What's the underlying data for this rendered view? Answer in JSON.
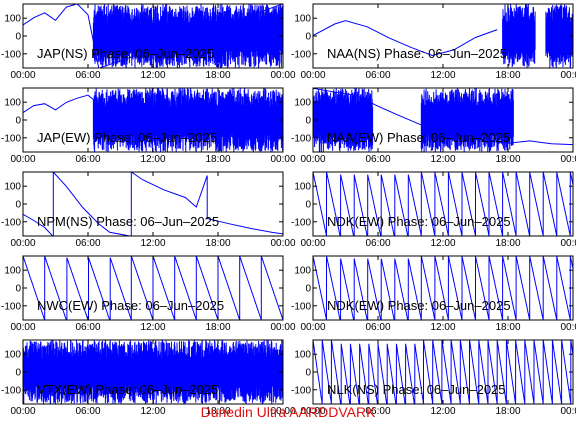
{
  "footer": "Dunedin Ultra AARDDVARK",
  "colors": {
    "trace": "#0000ff",
    "axes": "#000000",
    "background": "#ffffff",
    "footer": "#e01010"
  },
  "chart_data": [
    {
      "type": "line",
      "title": "JAP(NS) Phase: 06–Jun–2025",
      "xlabel": "",
      "ylabel": "",
      "ylim": [
        -180,
        180
      ],
      "yticks": [
        "-100",
        "0",
        "100"
      ],
      "xticks": [
        "00:00",
        "06:00",
        "12:00",
        "18:00",
        "00:00"
      ],
      "xlim_hours": [
        0,
        24
      ],
      "grid": false,
      "series": [
        {
          "x_hours": [
            0,
            1,
            2,
            3,
            4,
            5,
            6,
            7,
            24
          ],
          "values": [
            60,
            100,
            130,
            90,
            160,
            180,
            120,
            -180,
            180
          ]
        }
      ],
      "regions": [
        {
          "description": "noisy / wrapping",
          "from": 6.5,
          "to": 24
        }
      ]
    },
    {
      "type": "line",
      "title": "NAA(NS) Phase: 06–Jun–2025",
      "xlabel": "",
      "ylabel": "",
      "ylim": [
        -180,
        180
      ],
      "yticks": [
        "-100",
        "0",
        "100"
      ],
      "xticks": [
        "00:00",
        "06:00",
        "12:00",
        "18:00",
        "00:00"
      ],
      "xlim_hours": [
        0,
        24
      ],
      "grid": false,
      "series": [
        {
          "x_hours": [
            0,
            2,
            3,
            5,
            7,
            9,
            11,
            13,
            15,
            17
          ],
          "values": [
            0,
            70,
            90,
            50,
            -10,
            -60,
            -110,
            -80,
            -10,
            40
          ]
        }
      ],
      "regions": [
        {
          "description": "noisy",
          "from": 17.5,
          "to": 20.5
        },
        {
          "description": "noisy",
          "from": 21.5,
          "to": 24
        }
      ]
    },
    {
      "type": "line",
      "title": "JAP(EW) Phase: 06–Jun–2025",
      "xlabel": "",
      "ylabel": "",
      "ylim": [
        -180,
        180
      ],
      "yticks": [
        "-100",
        "0",
        "100"
      ],
      "xticks": [
        "00:00",
        "06:00",
        "12:00",
        "18:00",
        "00:00"
      ],
      "xlim_hours": [
        0,
        24
      ],
      "grid": false,
      "series": [
        {
          "x_hours": [
            0,
            1,
            2,
            3,
            4,
            5,
            6,
            7
          ],
          "values": [
            40,
            80,
            90,
            60,
            100,
            120,
            140,
            90
          ]
        }
      ],
      "regions": [
        {
          "description": "noisy / wrapping",
          "from": 6.5,
          "to": 24
        }
      ]
    },
    {
      "type": "line",
      "title": "NAA(EW) Phase: 06–Jun–2025",
      "xlabel": "",
      "ylabel": "",
      "ylim": [
        -180,
        180
      ],
      "yticks": [
        "-100",
        "0",
        "100"
      ],
      "xticks": [
        "00:00",
        "06:00",
        "12:00",
        "18:00",
        "00:00"
      ],
      "xlim_hours": [
        0,
        24
      ],
      "grid": false,
      "series": [
        {
          "x_hours": [
            0,
            2,
            4,
            6,
            8,
            10,
            12,
            14,
            16,
            18,
            20,
            22,
            24
          ],
          "values": [
            180,
            160,
            140,
            80,
            20,
            -30,
            -70,
            -100,
            -120,
            -130,
            -120,
            -130,
            -140
          ]
        }
      ],
      "regions": [
        {
          "description": "noisy",
          "from": 0,
          "to": 5.5
        },
        {
          "description": "noisy",
          "from": 10,
          "to": 18.5
        }
      ]
    },
    {
      "type": "line",
      "title": "NPM(NS) Phase: 06–Jun–2025",
      "xlabel": "",
      "ylabel": "",
      "ylim": [
        -180,
        180
      ],
      "yticks": [
        "-100",
        "0",
        "100"
      ],
      "xticks": [
        "00:00",
        "06:00",
        "12:00",
        "18:00",
        "00:00"
      ],
      "xlim_hours": [
        0,
        24
      ],
      "grid": false,
      "series": [
        {
          "x_hours": [
            0,
            1,
            2,
            2.8,
            2.8,
            4,
            5.5,
            7,
            8,
            10,
            10,
            11,
            13,
            15,
            16,
            17,
            17,
            19,
            21,
            23,
            24
          ],
          "values": [
            -60,
            -90,
            -130,
            -180,
            180,
            100,
            -20,
            -110,
            -160,
            -180,
            180,
            140,
            80,
            40,
            -20,
            160,
            -80,
            -110,
            -140,
            -160,
            -170
          ]
        }
      ],
      "regions": []
    },
    {
      "type": "line",
      "title": "NDK(EW) Phase: 06–Jun–2025",
      "xlabel": "",
      "ylabel": "",
      "ylim": [
        -180,
        180
      ],
      "yticks": [
        "-100",
        "0",
        "100"
      ],
      "xticks": [
        "00:00",
        "06:00",
        "12:00",
        "18:00",
        "00:00"
      ],
      "xlim_hours": [
        0,
        24
      ],
      "grid": false,
      "series": [
        {
          "sawtooth_period_hours": 1.25,
          "from": 180,
          "to": -180
        }
      ],
      "regions": []
    },
    {
      "type": "line",
      "title": "NWC(EW) Phase: 06–Jun–2025",
      "xlabel": "",
      "ylabel": "",
      "ylim": [
        -180,
        180
      ],
      "yticks": [
        "-100",
        "0",
        "100"
      ],
      "xticks": [
        "00:00",
        "06:00",
        "12:00",
        "18:00",
        "00:00"
      ],
      "xlim_hours": [
        0,
        24
      ],
      "grid": false,
      "series": [
        {
          "sawtooth_period_hours": 2.0,
          "from": 180,
          "to": -180
        }
      ],
      "regions": []
    },
    {
      "type": "line",
      "title": "NDK(EW) Phase: 06–Jun–2025",
      "xlabel": "",
      "ylabel": "",
      "ylim": [
        -180,
        180
      ],
      "yticks": [
        "-100",
        "0",
        "100"
      ],
      "xticks": [
        "00:00",
        "06:00",
        "12:00",
        "18:00",
        "00:00"
      ],
      "xlim_hours": [
        0,
        24
      ],
      "grid": false,
      "series": [
        {
          "sawtooth_period_hours": 1.25,
          "from": 180,
          "to": -180
        }
      ],
      "regions": []
    },
    {
      "type": "line",
      "title": "VTX(EW) Phase: 06–Jun–2025",
      "xlabel": "",
      "ylabel": "",
      "ylim": [
        -180,
        180
      ],
      "yticks": [
        "-100",
        "0",
        "100"
      ],
      "xticks": [
        "00:00",
        "06:00",
        "12:00",
        "18:00",
        "00:00"
      ],
      "xlim_hours": [
        0,
        24
      ],
      "grid": false,
      "series": [],
      "regions": [
        {
          "description": "noisy / wrapping",
          "from": 0,
          "to": 24
        }
      ]
    },
    {
      "type": "line",
      "title": "NLK(NS) Phase: 06–Jun–2025",
      "xlabel": "",
      "ylabel": "",
      "ylim": [
        -180,
        180
      ],
      "yticks": [
        "-100",
        "0",
        "100"
      ],
      "xticks": [
        "00:00",
        "06:00",
        "12:00",
        "18:00",
        "00:00"
      ],
      "xlim_hours": [
        0,
        24
      ],
      "grid": false,
      "series": [
        {
          "sawtooth_period_hours": 0.85,
          "from": 180,
          "to": -180
        }
      ],
      "regions": []
    }
  ]
}
